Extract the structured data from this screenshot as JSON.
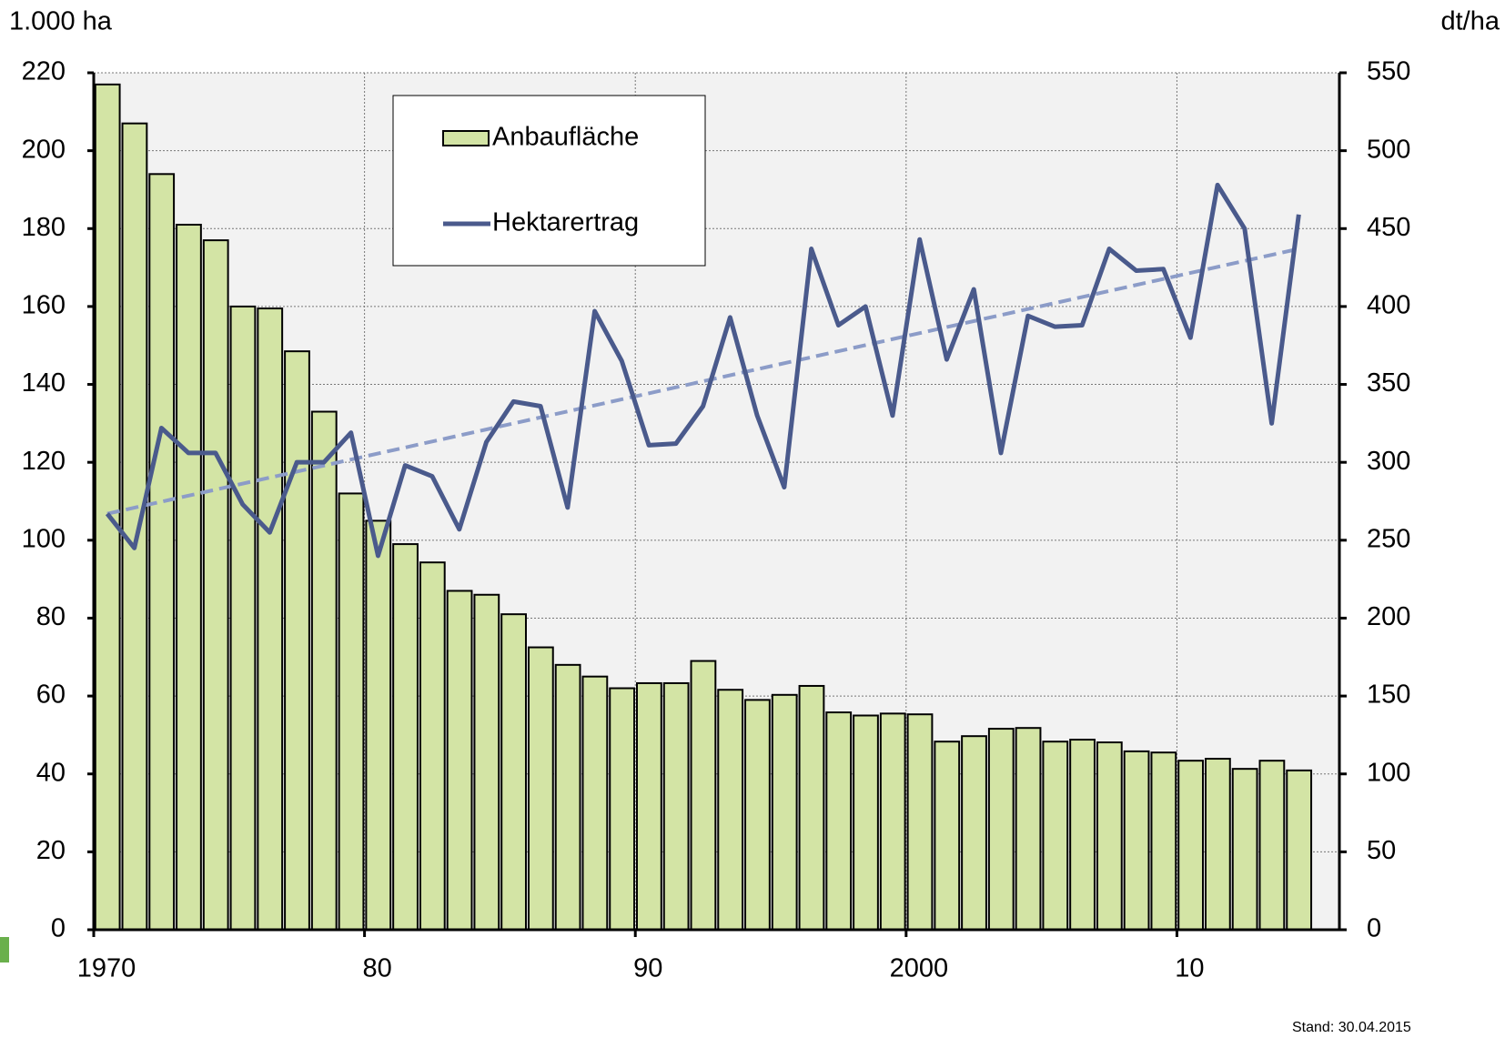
{
  "chart_data": {
    "type": "bar_line",
    "y_label": "1.000 ha",
    "y2_label": "dt/ha",
    "footnote": "Stand: 30.04.2015",
    "x": [
      1970,
      1971,
      1972,
      1973,
      1974,
      1975,
      1976,
      1977,
      1978,
      1979,
      1980,
      1981,
      1982,
      1983,
      1984,
      1985,
      1986,
      1987,
      1988,
      1989,
      1990,
      1991,
      1992,
      1993,
      1994,
      1995,
      1996,
      1997,
      1998,
      1999,
      2000,
      2001,
      2002,
      2003,
      2004,
      2005,
      2006,
      2007,
      2008,
      2009,
      2010,
      2011,
      2012,
      2013,
      2014
    ],
    "xlim": [
      1970,
      2016
    ],
    "xticks": [
      1970,
      {
        "value": 1980,
        "label": "80"
      },
      {
        "value": 1990,
        "label": "90"
      },
      2000,
      {
        "value": 2010,
        "label": "10"
      }
    ],
    "ylim": [
      0,
      220
    ],
    "yticks": [
      0,
      20,
      40,
      60,
      80,
      100,
      120,
      140,
      160,
      180,
      200,
      220
    ],
    "y2lim": [
      0,
      550
    ],
    "y2ticks": [
      0,
      50,
      100,
      150,
      200,
      250,
      300,
      350,
      400,
      450,
      500,
      550
    ],
    "grid": true,
    "series": [
      {
        "name": "Anbaufläche",
        "type": "bar",
        "color": "#d3e4a5",
        "values": [
          217,
          207,
          194,
          181,
          177,
          160,
          159.5,
          148.5,
          133,
          112,
          105,
          99,
          94.3,
          87,
          86,
          81,
          72.5,
          68,
          65,
          62,
          63.3,
          63.3,
          69,
          61.6,
          59,
          60.3,
          62.6,
          55.8,
          55,
          55.5,
          55.3,
          48.3,
          49.7,
          51.6,
          51.8,
          48.3,
          48.8,
          48.1,
          45.8,
          45.5,
          43.4,
          43.9,
          41.3,
          43.4,
          40.9
        ]
      },
      {
        "name": "Hektarertrag",
        "type": "line",
        "axis": "y2",
        "color": "#4a5a8c",
        "values": [
          267,
          245,
          322,
          306,
          306,
          273,
          255,
          300,
          300,
          319,
          240,
          298,
          291,
          257,
          313,
          339,
          336,
          271,
          397,
          365,
          311,
          312,
          336,
          393,
          330,
          284,
          437,
          388,
          400,
          330,
          443,
          366,
          411,
          306,
          394,
          387,
          388,
          437,
          423,
          424,
          380,
          478,
          450,
          325,
          459
        ]
      }
    ],
    "trend": {
      "type": "line",
      "axis": "y2",
      "color": "#8c9cc8",
      "dashed": true,
      "x": [
        1970,
        2014
      ],
      "values": [
        267,
        437
      ]
    }
  }
}
